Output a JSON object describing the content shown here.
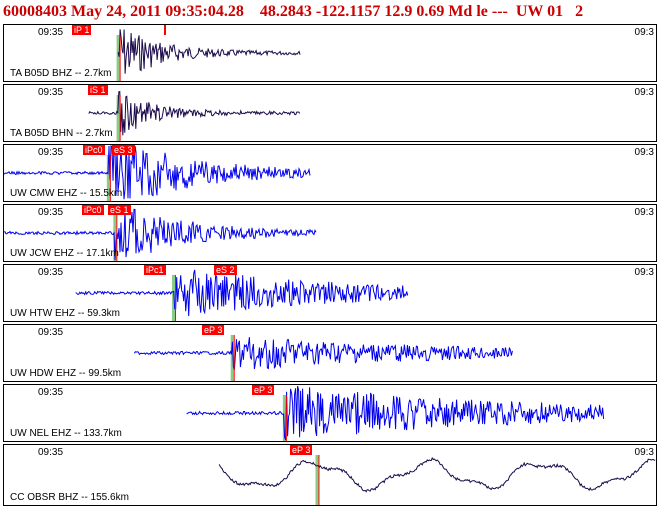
{
  "header": {
    "event_id": "60008403",
    "date": "May 24, 2011",
    "time": "09:35:04.28",
    "lat": "48.2843",
    "lon": "-122.1157",
    "depth": "12.9",
    "magnitude": "0.69",
    "mag_type": "Md",
    "location": "le",
    "dashes": "---",
    "network": "UW",
    "version": "01",
    "trailing": "2"
  },
  "colors": {
    "header": "#cc0000",
    "pick": "#ff0000",
    "trace_short": "#1a0a4a",
    "trace_vertical": "#0000ee",
    "phase_line": "#88cc88"
  },
  "traces": [
    {
      "time_left": "09:35",
      "time_right": "09:3",
      "channel": "TA B05D BHZ -- 2.7km",
      "picks": [
        "iP 1",
        ""
      ],
      "color": "#1a0a4a",
      "start": 0.175,
      "end": 0.455,
      "onset": 0.175,
      "amp": 0.55,
      "decay": 0.06
    },
    {
      "time_left": "09:35",
      "time_right": "09:3",
      "channel": "TA B05D BHN -- 2.7km",
      "picks": [
        "iS 1"
      ],
      "color": "#1a0a4a",
      "start": 0.13,
      "end": 0.455,
      "onset": 0.175,
      "amp": 0.45,
      "decay": 0.05
    },
    {
      "time_left": "09:35",
      "time_right": "09:3",
      "channel": "UW CMW EHZ -- 15.5km",
      "picks": [
        "iPc0",
        "eS 3"
      ],
      "color": "#0000ee",
      "start": 0.0,
      "end": 0.47,
      "onset": 0.16,
      "amp": 0.7,
      "decay": 0.12
    },
    {
      "time_left": "09:35",
      "time_right": "09:3",
      "channel": "UW JCW EHZ -- 17.1km",
      "picks": [
        "iPc0",
        "eS 1"
      ],
      "color": "#0000ee",
      "start": 0.0,
      "end": 0.48,
      "onset": 0.17,
      "amp": 0.6,
      "decay": 0.1
    },
    {
      "time_left": "09:35",
      "time_right": "09:3",
      "channel": "UW HTW EHZ -- 59.3km",
      "picks": [
        "iPc1",
        "eS 2"
      ],
      "color": "#0000ee",
      "start": 0.11,
      "end": 0.62,
      "onset": 0.26,
      "amp": 0.45,
      "decay": 0.25
    },
    {
      "time_left": "09:35",
      "time_right": "",
      "channel": "UW HDW EHZ -- 99.5km",
      "picks": [
        "eP 3"
      ],
      "color": "#0000ee",
      "start": 0.2,
      "end": 0.78,
      "onset": 0.35,
      "amp": 0.3,
      "decay": 0.3
    },
    {
      "time_left": "09:35",
      "time_right": "",
      "channel": "UW NEL EHZ -- 133.7km",
      "picks": [
        "eP 3"
      ],
      "color": "#0000ee",
      "start": 0.28,
      "end": 0.92,
      "onset": 0.43,
      "amp": 0.5,
      "decay": 0.35
    },
    {
      "time_left": "09:35",
      "time_right": "09:3",
      "channel": "CC OBSR BHZ -- 155.6km",
      "picks": [
        "eP 3"
      ],
      "color": "#1a0a4a",
      "start": 0.33,
      "end": 1.0,
      "onset": 0.48,
      "amp": 0.4,
      "decay": 0.9
    }
  ]
}
